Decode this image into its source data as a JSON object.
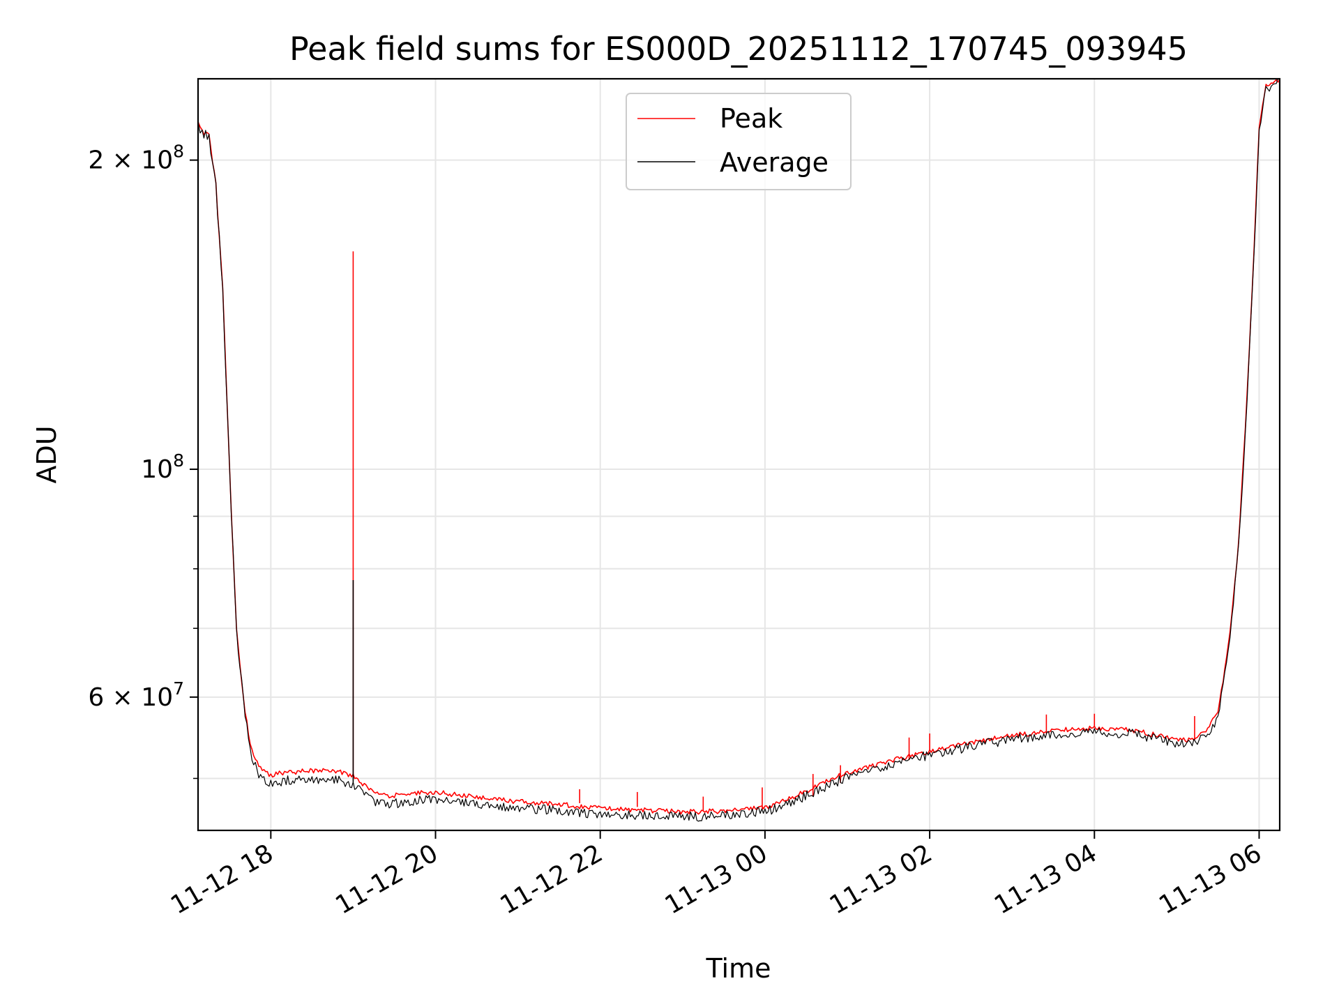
{
  "chart_data": {
    "type": "line",
    "title": "Peak field sums for ES000D_20251112_170745_093945",
    "xlabel": "Time",
    "ylabel": "ADU",
    "y_scale": "log",
    "ylim": [
      44500000,
      240000000
    ],
    "xlim": [
      "2025-11-12 17:07",
      "2025-11-13 06:15"
    ],
    "grid": true,
    "legend_position": "upper center",
    "x_ticks": [
      {
        "t": "2025-11-12 18:00",
        "label": "11-12 18"
      },
      {
        "t": "2025-11-12 20:00",
        "label": "11-12 20"
      },
      {
        "t": "2025-11-12 22:00",
        "label": "11-12 22"
      },
      {
        "t": "2025-11-13 00:00",
        "label": "11-13 00"
      },
      {
        "t": "2025-11-13 02:00",
        "label": "11-13 02"
      },
      {
        "t": "2025-11-13 04:00",
        "label": "11-13 04"
      },
      {
        "t": "2025-11-13 06:00",
        "label": "11-13 06"
      }
    ],
    "y_ticks": [
      {
        "value": 200000000,
        "label": "2 × 10",
        "exp": "8"
      },
      {
        "value": 100000000,
        "label": "10",
        "exp": "8"
      },
      {
        "value": 60000000,
        "label": "6 × 10",
        "exp": "7"
      }
    ],
    "y_minor_ticks": [
      50000000,
      70000000,
      80000000,
      90000000
    ],
    "series": [
      {
        "name": "Peak",
        "color": "#ff0000",
        "x": [
          "2025-11-12 17:07",
          "2025-11-12 17:10",
          "2025-11-12 17:15",
          "2025-11-12 17:20",
          "2025-11-12 17:25",
          "2025-11-12 17:30",
          "2025-11-12 17:35",
          "2025-11-12 17:40",
          "2025-11-12 17:45",
          "2025-11-12 17:50",
          "2025-11-12 17:55",
          "2025-11-12 18:00",
          "2025-11-12 18:10",
          "2025-11-12 18:30",
          "2025-11-12 18:45",
          "2025-11-12 19:00",
          "2025-11-12 19:15",
          "2025-11-12 19:25",
          "2025-11-12 19:35",
          "2025-11-12 19:45",
          "2025-11-12 20:00",
          "2025-11-12 20:30",
          "2025-11-12 21:00",
          "2025-11-12 21:30",
          "2025-11-12 22:00",
          "2025-11-12 22:30",
          "2025-11-12 23:00",
          "2025-11-12 23:30",
          "2025-11-13 00:00",
          "2025-11-13 00:20",
          "2025-11-13 00:40",
          "2025-11-13 01:00",
          "2025-11-13 01:30",
          "2025-11-13 02:00",
          "2025-11-13 02:30",
          "2025-11-13 03:00",
          "2025-11-13 03:30",
          "2025-11-13 04:00",
          "2025-11-13 04:30",
          "2025-11-13 05:00",
          "2025-11-13 05:10",
          "2025-11-13 05:20",
          "2025-11-13 05:30",
          "2025-11-13 05:35",
          "2025-11-13 05:40",
          "2025-11-13 05:45",
          "2025-11-13 05:50",
          "2025-11-13 05:55",
          "2025-11-13 06:00",
          "2025-11-13 06:05",
          "2025-11-13 06:15"
        ],
        "y": [
          218000000,
          214000000,
          212000000,
          190000000,
          150000000,
          100000000,
          70000000,
          60000000,
          54000000,
          52000000,
          51000000,
          50500000,
          50800000,
          51000000,
          51000000,
          50500000,
          48500000,
          48200000,
          48300000,
          48500000,
          48600000,
          48100000,
          47600000,
          47300000,
          46900000,
          46700000,
          46500000,
          46600000,
          47000000,
          48000000,
          49500000,
          50800000,
          52100000,
          53300000,
          54300000,
          55200000,
          55800000,
          56200000,
          55800000,
          54700000,
          54600000,
          55500000,
          58000000,
          64000000,
          72000000,
          85000000,
          110000000,
          150000000,
          215000000,
          237000000,
          240000000
        ],
        "spikes": [
          {
            "t": "2025-11-12 19:00",
            "value": 163000000
          },
          {
            "t": "2025-11-12 21:45",
            "value": 48800000
          },
          {
            "t": "2025-11-12 22:27",
            "value": 48500000
          },
          {
            "t": "2025-11-12 23:15",
            "value": 48000000
          },
          {
            "t": "2025-11-12 23:58",
            "value": 49000000
          },
          {
            "t": "2025-11-13 00:35",
            "value": 50500000
          },
          {
            "t": "2025-11-13 00:55",
            "value": 51500000
          },
          {
            "t": "2025-11-13 01:45",
            "value": 54800000
          },
          {
            "t": "2025-11-13 02:00",
            "value": 55300000
          },
          {
            "t": "2025-11-13 03:25",
            "value": 57700000
          },
          {
            "t": "2025-11-13 04:00",
            "value": 57800000
          },
          {
            "t": "2025-11-13 05:13",
            "value": 57500000
          }
        ]
      },
      {
        "name": "Average",
        "color": "#000000",
        "x": [
          "2025-11-12 17:07",
          "2025-11-12 17:10",
          "2025-11-12 17:15",
          "2025-11-12 17:20",
          "2025-11-12 17:25",
          "2025-11-12 17:30",
          "2025-11-12 17:35",
          "2025-11-12 17:40",
          "2025-11-12 17:45",
          "2025-11-12 17:50",
          "2025-11-12 17:55",
          "2025-11-12 18:00",
          "2025-11-12 18:10",
          "2025-11-12 18:30",
          "2025-11-12 18:45",
          "2025-11-12 19:00",
          "2025-11-12 19:15",
          "2025-11-12 19:25",
          "2025-11-12 19:35",
          "2025-11-12 19:45",
          "2025-11-12 20:00",
          "2025-11-12 20:30",
          "2025-11-12 21:00",
          "2025-11-12 21:30",
          "2025-11-12 22:00",
          "2025-11-12 22:30",
          "2025-11-12 23:00",
          "2025-11-12 23:30",
          "2025-11-13 00:00",
          "2025-11-13 00:20",
          "2025-11-13 00:40",
          "2025-11-13 01:00",
          "2025-11-13 01:30",
          "2025-11-13 02:00",
          "2025-11-13 02:30",
          "2025-11-13 03:00",
          "2025-11-13 03:30",
          "2025-11-13 04:00",
          "2025-11-13 04:30",
          "2025-11-13 05:00",
          "2025-11-13 05:10",
          "2025-11-13 05:20",
          "2025-11-13 05:30",
          "2025-11-13 05:35",
          "2025-11-13 05:40",
          "2025-11-13 05:45",
          "2025-11-13 05:50",
          "2025-11-13 05:55",
          "2025-11-13 06:00",
          "2025-11-13 06:05",
          "2025-11-13 06:15"
        ],
        "y": [
          218000000,
          214000000,
          212000000,
          190000000,
          150000000,
          100000000,
          70000000,
          60000000,
          53500000,
          51000000,
          50200000,
          49800000,
          50000000,
          50200000,
          50200000,
          49600000,
          47700000,
          47400000,
          47600000,
          47800000,
          47900000,
          47500000,
          47000000,
          46800000,
          46400000,
          46200000,
          46100000,
          46300000,
          46700000,
          47600000,
          49100000,
          50400000,
          51800000,
          53000000,
          54000000,
          54900000,
          55500000,
          55900000,
          55500000,
          54300000,
          54200000,
          55100000,
          57500000,
          63500000,
          71500000,
          84500000,
          109000000,
          149000000,
          214000000,
          236000000,
          240000000
        ],
        "spikes": [
          {
            "t": "2025-11-12 19:00",
            "value": 78000000
          }
        ]
      }
    ]
  }
}
